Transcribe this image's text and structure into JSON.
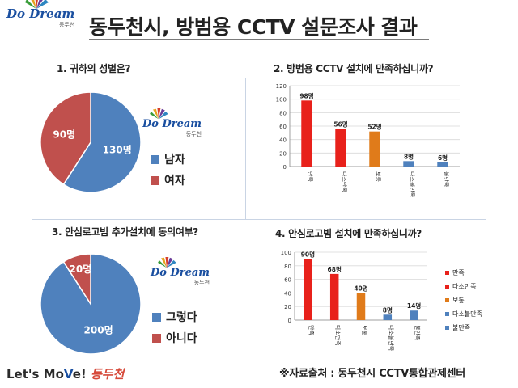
{
  "brand": {
    "logo_text": "Do Dream",
    "logo_sub": "동두천",
    "slogan_prefix": "Let's Mo",
    "slogan_v": "V",
    "slogan_suffix": "e!",
    "slogan_city": "동두천"
  },
  "title": "동두천시, 방범용 CCTV 설문조사 결과",
  "source": "※자료출처 : 동두천시 CCTV통합관제센터",
  "colors": {
    "blue": "#4f81bd",
    "red": "#c0504d",
    "bright_red": "#e8211b",
    "orange": "#e07b1a",
    "steel": "#4f81bd"
  },
  "chart_data": [
    {
      "type": "pie",
      "title": "1. 귀하의 성별은?",
      "slices": [
        {
          "label": "남자",
          "value": 130,
          "value_label": "130명",
          "color": "#4f81bd"
        },
        {
          "label": "여자",
          "value": 90,
          "value_label": "90명",
          "color": "#c0504d"
        }
      ],
      "legend_position": "right"
    },
    {
      "type": "bar",
      "title": "2. 방범용 CCTV 설치에 만족하십니까?",
      "categories": [
        "만족",
        "다소만족",
        "보통",
        "다소불만족",
        "불만족"
      ],
      "values": [
        98,
        56,
        52,
        8,
        6
      ],
      "value_labels": [
        "98명",
        "56명",
        "52명",
        "8명",
        "6명"
      ],
      "colors": [
        "#e8211b",
        "#e8211b",
        "#e07b1a",
        "#4f81bd",
        "#4f81bd"
      ],
      "ylim": [
        0,
        120
      ],
      "yticks": [
        0,
        20,
        40,
        60,
        80,
        100,
        120
      ],
      "grid": true
    },
    {
      "type": "pie",
      "title": "3. 안심로고빔 추가설치에 동의여부?",
      "slices": [
        {
          "label": "그렇다",
          "value": 200,
          "value_label": "200명",
          "color": "#4f81bd"
        },
        {
          "label": "아니다",
          "value": 20,
          "value_label": "20명",
          "color": "#c0504d"
        }
      ],
      "legend_position": "right"
    },
    {
      "type": "bar",
      "title": "4. 안심로고빔 설치에 만족하십니까?",
      "categories": [
        "만족",
        "다소만족",
        "보통",
        "다소불만족",
        "불만족"
      ],
      "values": [
        90,
        68,
        40,
        8,
        14
      ],
      "value_labels": [
        "90명",
        "68명",
        "40명",
        "8명",
        "14명"
      ],
      "colors": [
        "#e8211b",
        "#e8211b",
        "#e07b1a",
        "#4f81bd",
        "#4f81bd"
      ],
      "ylim": [
        0,
        100
      ],
      "yticks": [
        0,
        20,
        40,
        60,
        80,
        100
      ],
      "grid": true,
      "legend": [
        "만족",
        "다소만족",
        "보통",
        "다소불만족",
        "불만족"
      ],
      "legend_position": "right"
    }
  ]
}
